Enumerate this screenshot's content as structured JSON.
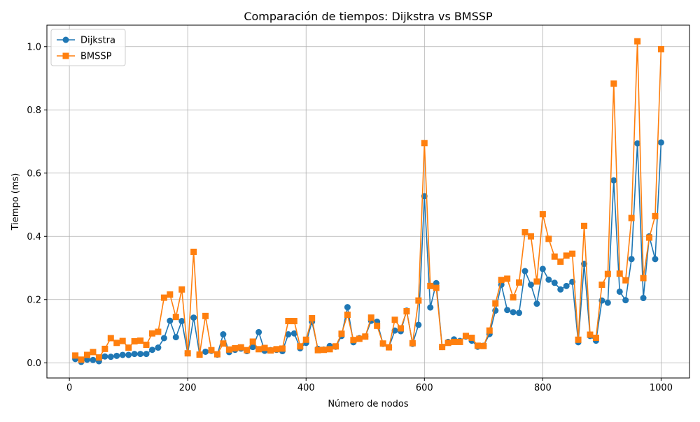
{
  "chart_data": {
    "type": "line",
    "title": "Comparación de tiempos: Dijkstra vs BMSSP",
    "xlabel": "Número de nodos",
    "ylabel": "Tiempo (ms)",
    "xlim": [
      -38,
      1048
    ],
    "ylim": [
      -0.048,
      1.068
    ],
    "xticks": [
      0,
      200,
      400,
      600,
      800,
      1000
    ],
    "xtick_labels": [
      "0",
      "200",
      "400",
      "600",
      "800",
      "1000"
    ],
    "yticks": [
      0.0,
      0.2,
      0.4,
      0.6,
      0.8,
      1.0
    ],
    "ytick_labels": [
      "0.0",
      "0.2",
      "0.4",
      "0.6",
      "0.8",
      "1.0"
    ],
    "grid": true,
    "legend_position": "top-left",
    "x": [
      10,
      20,
      30,
      40,
      50,
      60,
      70,
      80,
      90,
      100,
      110,
      120,
      130,
      140,
      150,
      160,
      170,
      180,
      190,
      200,
      210,
      220,
      230,
      240,
      250,
      260,
      270,
      280,
      290,
      300,
      310,
      320,
      330,
      340,
      350,
      360,
      370,
      380,
      390,
      400,
      410,
      420,
      430,
      440,
      450,
      460,
      470,
      480,
      490,
      500,
      510,
      520,
      530,
      540,
      550,
      560,
      570,
      580,
      590,
      600,
      610,
      620,
      630,
      640,
      650,
      660,
      670,
      680,
      690,
      700,
      710,
      720,
      730,
      740,
      750,
      760,
      770,
      780,
      790,
      800,
      810,
      820,
      830,
      840,
      850,
      860,
      870,
      880,
      890,
      900,
      910,
      920,
      930,
      940,
      950,
      960,
      970,
      980,
      990,
      1000
    ],
    "series": [
      {
        "name": "Dijkstra",
        "color": "#1f77b4",
        "marker": "circle",
        "values": [
          0.012,
          0.003,
          0.01,
          0.009,
          0.005,
          0.02,
          0.019,
          0.022,
          0.025,
          0.025,
          0.028,
          0.028,
          0.028,
          0.041,
          0.048,
          0.078,
          0.133,
          0.081,
          0.132,
          0.03,
          0.143,
          0.027,
          0.035,
          0.038,
          0.026,
          0.09,
          0.034,
          0.041,
          0.045,
          0.037,
          0.05,
          0.097,
          0.038,
          0.04,
          0.041,
          0.037,
          0.09,
          0.093,
          0.046,
          0.063,
          0.13,
          0.044,
          0.042,
          0.053,
          0.051,
          0.085,
          0.176,
          0.065,
          0.078,
          0.083,
          0.133,
          0.13,
          0.06,
          0.049,
          0.102,
          0.1,
          0.165,
          0.06,
          0.12,
          0.527,
          0.175,
          0.252,
          0.05,
          0.066,
          0.074,
          0.069,
          0.083,
          0.07,
          0.051,
          0.054,
          0.091,
          0.165,
          0.247,
          0.167,
          0.16,
          0.158,
          0.29,
          0.247,
          0.187,
          0.297,
          0.263,
          0.253,
          0.232,
          0.243,
          0.256,
          0.065,
          0.313,
          0.085,
          0.07,
          0.197,
          0.19,
          0.577,
          0.225,
          0.198,
          0.328,
          0.694,
          0.205,
          0.4,
          0.328,
          0.697
        ]
      },
      {
        "name": "BMSSP",
        "color": "#ff7f0e",
        "marker": "square",
        "values": [
          0.023,
          0.01,
          0.025,
          0.034,
          0.017,
          0.044,
          0.078,
          0.063,
          0.069,
          0.048,
          0.068,
          0.07,
          0.057,
          0.093,
          0.098,
          0.206,
          0.216,
          0.145,
          0.232,
          0.03,
          0.351,
          0.026,
          0.148,
          0.04,
          0.027,
          0.061,
          0.042,
          0.046,
          0.049,
          0.04,
          0.067,
          0.043,
          0.047,
          0.039,
          0.043,
          0.045,
          0.132,
          0.132,
          0.052,
          0.073,
          0.141,
          0.04,
          0.041,
          0.043,
          0.052,
          0.092,
          0.152,
          0.072,
          0.076,
          0.083,
          0.143,
          0.117,
          0.061,
          0.049,
          0.136,
          0.109,
          0.163,
          0.062,
          0.197,
          0.695,
          0.243,
          0.237,
          0.05,
          0.063,
          0.066,
          0.066,
          0.085,
          0.079,
          0.054,
          0.053,
          0.102,
          0.188,
          0.262,
          0.266,
          0.207,
          0.254,
          0.413,
          0.4,
          0.257,
          0.47,
          0.392,
          0.336,
          0.32,
          0.339,
          0.345,
          0.073,
          0.433,
          0.089,
          0.079,
          0.247,
          0.281,
          0.883,
          0.282,
          0.261,
          0.458,
          1.017,
          0.268,
          0.396,
          0.464,
          0.992
        ]
      }
    ]
  }
}
